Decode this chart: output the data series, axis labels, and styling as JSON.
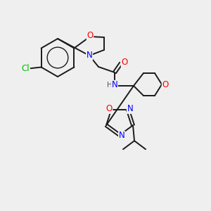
{
  "bg_color": "#efefef",
  "bond_color": "#1a1a1a",
  "atom_colors": {
    "O": "#ff0000",
    "N": "#0000ff",
    "Cl": "#00bb00",
    "H": "#555555"
  },
  "figsize": [
    3.0,
    3.0
  ],
  "dpi": 100
}
